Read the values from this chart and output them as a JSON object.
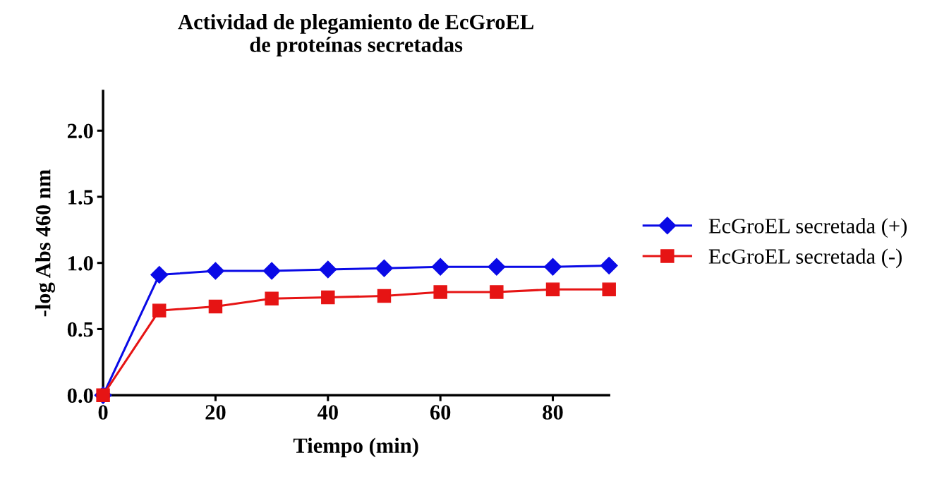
{
  "chart_data": {
    "type": "line",
    "title": "Actividad de plegamiento de EcGroEL\nde proteínas secretadas",
    "xlabel": "Tiempo (min)",
    "ylabel": "-log Abs 460 nm",
    "x": [
      0,
      10,
      20,
      30,
      40,
      50,
      60,
      70,
      80,
      90
    ],
    "series": [
      {
        "name": "EcGroEL secretada (+)",
        "color": "#0a0ae6",
        "marker": "diamond",
        "values": [
          0,
          0.91,
          0.94,
          0.94,
          0.95,
          0.96,
          0.97,
          0.97,
          0.97,
          0.98
        ]
      },
      {
        "name": "EcGroEL secretada (-)",
        "color": "#e61414",
        "marker": "square",
        "values": [
          0,
          0.64,
          0.67,
          0.73,
          0.74,
          0.75,
          0.78,
          0.78,
          0.8,
          0.8
        ]
      }
    ],
    "xlim": [
      0,
      90
    ],
    "ylim": [
      0,
      2.3
    ],
    "xticks": [
      0,
      20,
      40,
      60,
      80
    ],
    "yticks": [
      {
        "value": 0,
        "label": "0.0"
      },
      {
        "value": 0.5,
        "label": "0.5"
      },
      {
        "value": 1.0,
        "label": "1.0"
      },
      {
        "value": 1.5,
        "label": "1.5"
      },
      {
        "value": 2.0,
        "label": "2.0"
      }
    ],
    "legend": "right",
    "grid": false,
    "line_style": "solid"
  }
}
